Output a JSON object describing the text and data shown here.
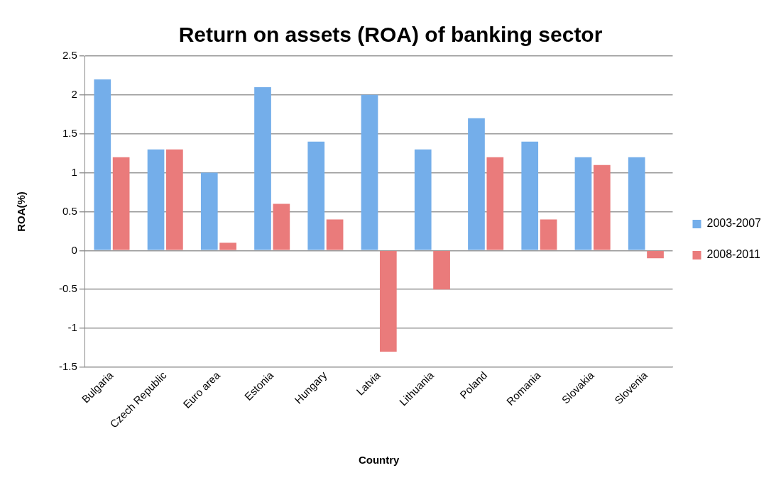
{
  "chart_data": {
    "type": "bar",
    "title": "Return on assets (ROA) of banking sector",
    "xlabel": "Country",
    "ylabel": "ROA(%)",
    "categories": [
      "Bulgaria",
      "Czech Republic",
      "Euro area",
      "Estonia",
      "Hungary",
      "Latvia",
      "Lithuania",
      "Poland",
      "Romania",
      "Slovakia",
      "Slovenia"
    ],
    "series": [
      {
        "name": "2003-2007",
        "color": "#74aeea",
        "values": [
          2.2,
          1.3,
          1.0,
          2.1,
          1.4,
          2.0,
          1.3,
          1.7,
          1.4,
          1.2,
          1.2
        ]
      },
      {
        "name": "2008-2011",
        "color": "#ea7b7b",
        "values": [
          1.2,
          1.3,
          0.1,
          0.6,
          0.4,
          -1.3,
          -0.5,
          1.2,
          0.4,
          1.1,
          -0.1
        ]
      }
    ],
    "ylim": [
      -1.5,
      2.5
    ],
    "yticks": [
      -1.5,
      -1,
      -0.5,
      0,
      0.5,
      1,
      1.5,
      2,
      2.5
    ],
    "grid": "y",
    "legend": "right"
  }
}
